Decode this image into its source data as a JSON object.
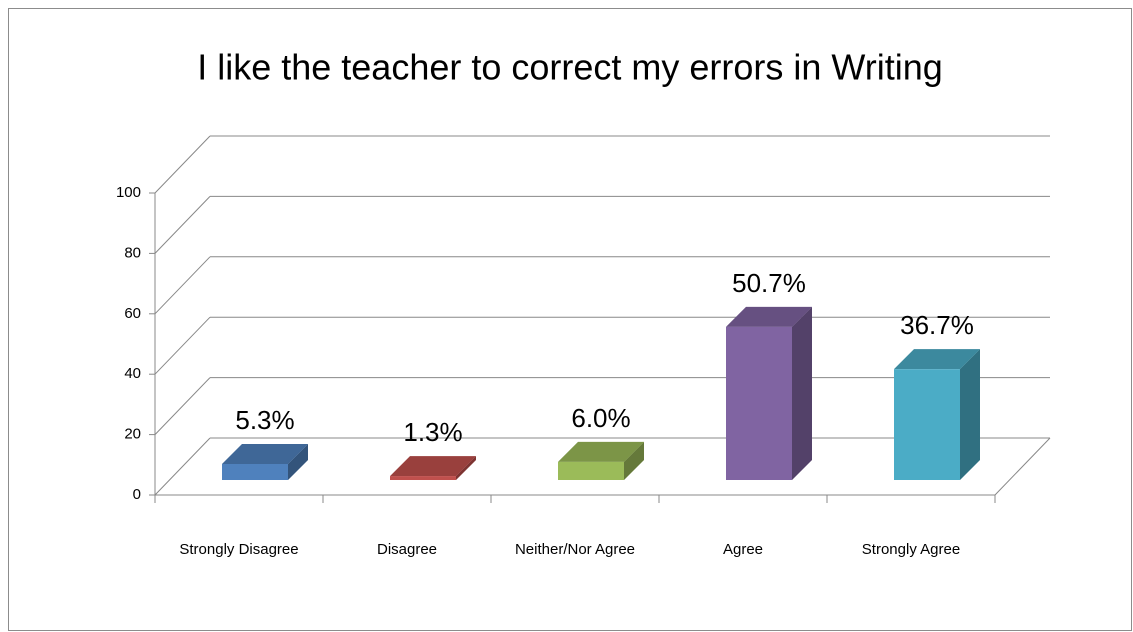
{
  "chart_data": {
    "type": "bar3d",
    "title": "I like the teacher to correct my errors in Writing",
    "categories": [
      "Strongly Disagree",
      "Disagree",
      "Neither/Nor Agree",
      "Agree",
      "Strongly Agree"
    ],
    "values": [
      5.3,
      1.3,
      6.0,
      50.7,
      36.7
    ],
    "value_labels": [
      "5.3%",
      "1.3%",
      "6.0%",
      "50.7%",
      "36.7%"
    ],
    "colors": [
      "#4f81bd",
      "#c0504d",
      "#9bbb59",
      "#8064a2",
      "#4bacc6"
    ],
    "ylim": [
      0,
      100
    ],
    "yticks": [
      0,
      20,
      40,
      60,
      80,
      100
    ],
    "grid": true
  }
}
